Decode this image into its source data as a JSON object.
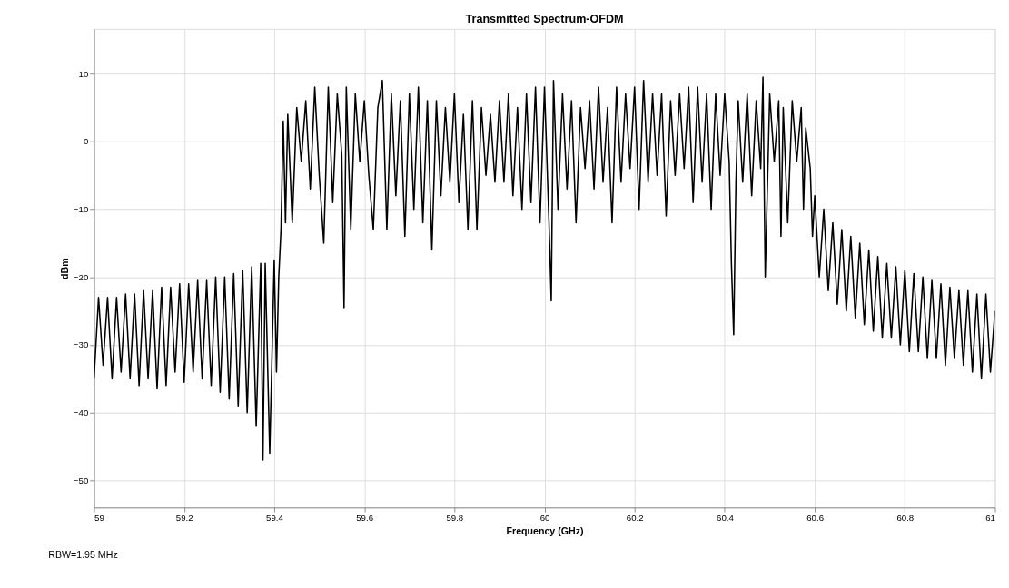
{
  "chart_data": {
    "type": "line",
    "title": "Transmitted Spectrum-OFDM",
    "xlabel": "Frequency (GHz)",
    "ylabel": "dBm",
    "annotations": [
      "RBW=1.95 MHz"
    ],
    "x": [
      59.0,
      59.01,
      59.02,
      59.03,
      59.04,
      59.05,
      59.06,
      59.07,
      59.08,
      59.09,
      59.1,
      59.11,
      59.12,
      59.13,
      59.14,
      59.15,
      59.16,
      59.17,
      59.18,
      59.19,
      59.2,
      59.21,
      59.22,
      59.23,
      59.24,
      59.25,
      59.26,
      59.27,
      59.28,
      59.29,
      59.3,
      59.31,
      59.32,
      59.33,
      59.34,
      59.35,
      59.36,
      59.37,
      59.375,
      59.38,
      59.39,
      59.4,
      59.405,
      59.41,
      59.415,
      59.42,
      59.425,
      59.43,
      59.44,
      59.45,
      59.46,
      59.47,
      59.48,
      59.49,
      59.5,
      59.51,
      59.52,
      59.53,
      59.54,
      59.55,
      59.555,
      59.56,
      59.57,
      59.58,
      59.59,
      59.6,
      59.61,
      59.62,
      59.63,
      59.64,
      59.65,
      59.66,
      59.67,
      59.68,
      59.69,
      59.7,
      59.71,
      59.72,
      59.73,
      59.74,
      59.75,
      59.76,
      59.77,
      59.78,
      59.79,
      59.8,
      59.81,
      59.82,
      59.83,
      59.84,
      59.85,
      59.86,
      59.87,
      59.88,
      59.89,
      59.9,
      59.91,
      59.92,
      59.93,
      59.94,
      59.95,
      59.96,
      59.97,
      59.98,
      59.99,
      60.0,
      60.01,
      60.015,
      60.02,
      60.03,
      60.04,
      60.05,
      60.06,
      60.07,
      60.08,
      60.09,
      60.1,
      60.11,
      60.12,
      60.13,
      60.14,
      60.15,
      60.16,
      60.17,
      60.18,
      60.19,
      60.2,
      60.21,
      60.22,
      60.23,
      60.24,
      60.25,
      60.26,
      60.27,
      60.28,
      60.29,
      60.3,
      60.31,
      60.32,
      60.33,
      60.34,
      60.35,
      60.36,
      60.37,
      60.38,
      60.39,
      60.4,
      60.41,
      60.415,
      60.42,
      60.425,
      60.43,
      60.44,
      60.45,
      60.46,
      60.47,
      60.48,
      60.485,
      60.49,
      60.5,
      60.51,
      60.52,
      60.525,
      60.53,
      60.54,
      60.55,
      60.56,
      60.57,
      60.575,
      60.58,
      60.59,
      60.595,
      60.6,
      60.61,
      60.62,
      60.63,
      60.64,
      60.65,
      60.66,
      60.67,
      60.68,
      60.69,
      60.7,
      60.71,
      60.72,
      60.73,
      60.74,
      60.75,
      60.76,
      60.77,
      60.78,
      60.79,
      60.8,
      60.81,
      60.82,
      60.83,
      60.84,
      60.85,
      60.86,
      60.87,
      60.88,
      60.89,
      60.9,
      60.91,
      60.92,
      60.93,
      60.94,
      60.95,
      60.96,
      60.97,
      60.98,
      60.99,
      61.0
    ],
    "values": [
      -35,
      -23,
      -33,
      -23,
      -35,
      -23,
      -34,
      -22.5,
      -35,
      -22.5,
      -36,
      -22,
      -35,
      -22,
      -36.5,
      -21.5,
      -36,
      -21.5,
      -34,
      -21,
      -35.5,
      -21,
      -34,
      -20.5,
      -35,
      -20.5,
      -36,
      -20,
      -37,
      -20,
      -38,
      -19.5,
      -39,
      -19,
      -40,
      -18.5,
      -42,
      -18,
      -47,
      -18,
      -46,
      -17.5,
      -34,
      -20,
      -13,
      3,
      -12,
      4,
      -12,
      5,
      -3,
      6,
      -7,
      8,
      -5,
      -15,
      8,
      -9,
      7,
      -2,
      -24.5,
      8,
      -13,
      7,
      -3,
      6,
      -5,
      -13,
      5,
      9,
      -13,
      7,
      -8,
      6,
      -14,
      7,
      -10,
      8,
      -12,
      6,
      -16,
      6,
      -8,
      5,
      -6,
      7,
      -9,
      4,
      -13,
      6,
      -13,
      5,
      -5,
      4,
      -6,
      6,
      -6,
      7,
      -8,
      5,
      -10,
      7,
      -9,
      8,
      -12,
      8,
      -12,
      -23.5,
      9,
      -10,
      7,
      -7,
      6,
      -12,
      5,
      -4,
      6,
      -7,
      8,
      -6,
      5,
      -12,
      8,
      -6,
      7,
      -4,
      8,
      -10,
      9,
      -6,
      7,
      -5,
      7,
      -11,
      6,
      -5,
      7,
      -4,
      8,
      -9,
      8,
      -6,
      7,
      -10,
      7,
      -5,
      7,
      -3,
      -18,
      -28.5,
      -6,
      6,
      -6,
      7,
      -8,
      6,
      -4,
      9.5,
      -20,
      7,
      -3,
      6,
      -14,
      5,
      -12,
      6,
      -3,
      5,
      -10,
      2,
      -4,
      -14,
      -8,
      -20,
      -10,
      -22,
      -12,
      -24,
      -13,
      -25,
      -14,
      -26,
      -15,
      -27,
      -16,
      -28,
      -17,
      -29,
      -18,
      -29,
      -18.5,
      -30,
      -19,
      -31,
      -19.5,
      -31,
      -20,
      -32,
      -20.5,
      -32,
      -21,
      -33,
      -21.5,
      -32,
      -22,
      -33,
      -22,
      -34,
      -22.5,
      -35,
      -22.5,
      -34,
      -25
    ],
    "color": "#000000",
    "xlim": [
      59,
      61
    ],
    "ylim": [
      -54,
      16.6
    ],
    "xticks": [
      59,
      59.2,
      59.4,
      59.6,
      59.8,
      60,
      60.2,
      60.4,
      60.6,
      60.8,
      61
    ],
    "yticks": [
      -50,
      -40,
      -30,
      -20,
      -10,
      0,
      10
    ],
    "grid": true,
    "marker": "none",
    "line_style": "solid"
  }
}
